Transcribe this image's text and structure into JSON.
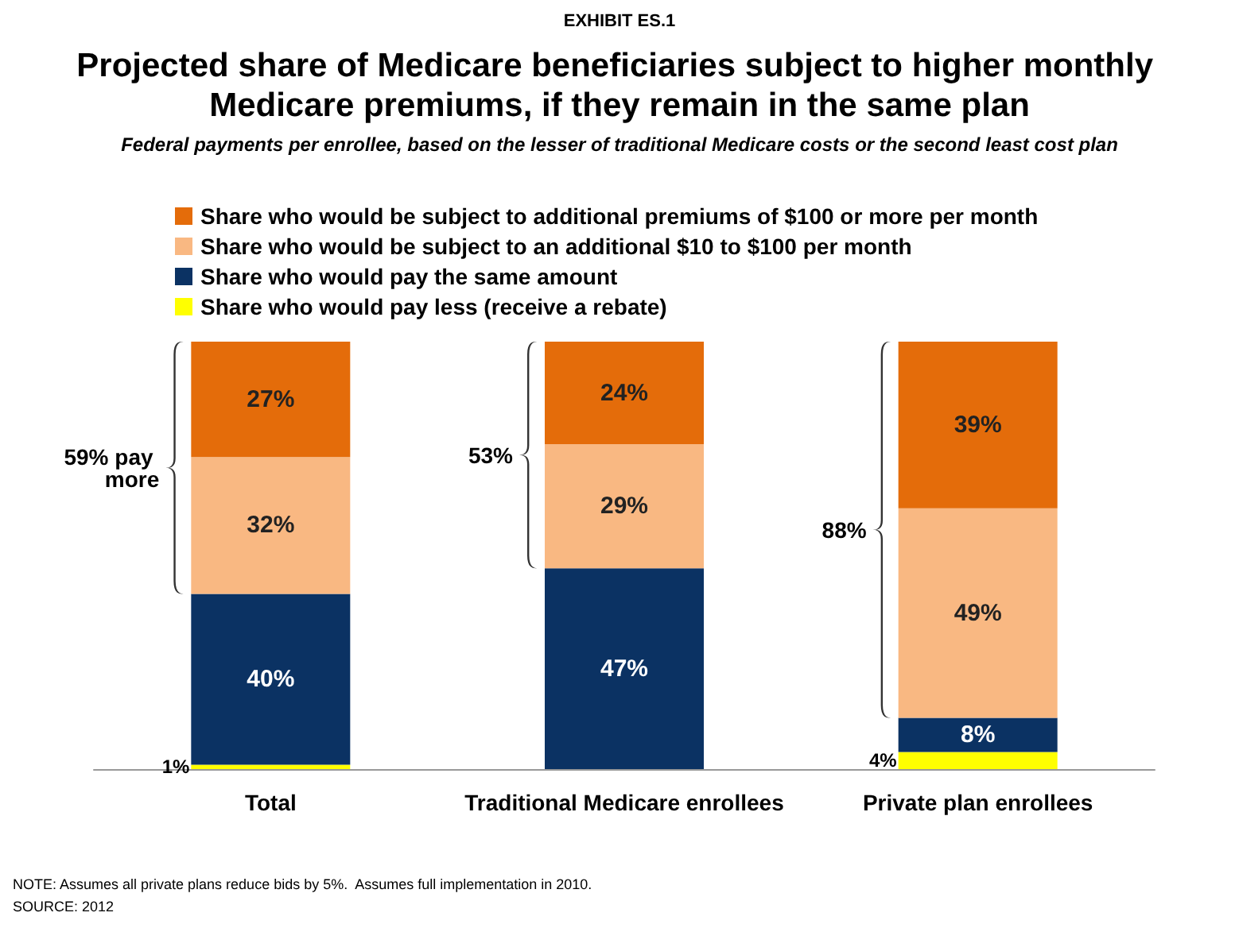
{
  "chart_data": {
    "type": "bar",
    "stacked": true,
    "title": "Projected share of Medicare beneficiaries subject to higher monthly Medicare premiums, if they remain in the same plan",
    "subtitle": "Federal payments per enrollee, based on the lesser of traditional Medicare costs or the second least cost plan",
    "categories": [
      "Total",
      "Traditional Medicare enrollees",
      "Private plan enrollees"
    ],
    "series": [
      {
        "name": "Share who would pay less (receive a rebate)",
        "color": "#ffff00",
        "values": [
          1,
          null,
          4
        ],
        "value_labels": [
          "1%",
          null,
          "4%"
        ]
      },
      {
        "name": "Share who would pay the same amount",
        "color": "#0b3263",
        "values": [
          40,
          47,
          8
        ],
        "value_labels": [
          "40%",
          "47%",
          "8%"
        ]
      },
      {
        "name": "Share who would be subject to an additional $10 to $100 per month",
        "color": "#f9b882",
        "values": [
          32,
          29,
          49
        ],
        "value_labels": [
          "32%",
          "29%",
          "49%"
        ]
      },
      {
        "name": "Share who would be subject to additional premiums of $100 or more per month",
        "color": "#e46c0a",
        "values": [
          27,
          24,
          39
        ],
        "value_labels": [
          "27%",
          "24%",
          "39%"
        ]
      }
    ],
    "ylim": [
      0,
      100
    ],
    "tick_labels": "x",
    "grid": false,
    "legend": "top",
    "annotations": [
      "EXHIBIT ES.1",
      "59% pay more",
      "53%",
      "88%",
      "NOTE: Assumes all private plans reduce bids by 5%.  Assumes full implementation in 2010.",
      "SOURCE: 2012"
    ]
  }
}
